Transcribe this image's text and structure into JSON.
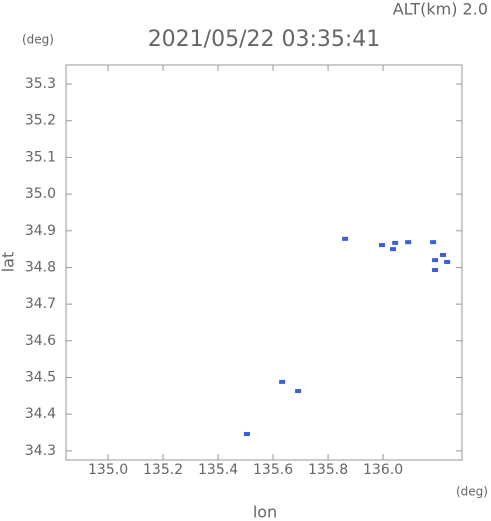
{
  "chart_data": {
    "type": "scatter",
    "title": "2021/05/22 03:35:41",
    "subtitle": "ALT(km) 2.0",
    "y_unit": "(deg)",
    "x_unit": "(deg)",
    "x_label": "lon",
    "y_label": "lat",
    "color": "#3a5fd8",
    "x": [
      135.862,
      135.633,
      135.691,
      135.505,
      135.996,
      136.044,
      136.036,
      136.091,
      136.182,
      136.218,
      136.233,
      136.189,
      136.189
    ],
    "y": [
      34.878,
      34.488,
      34.463,
      34.346,
      34.861,
      34.867,
      34.85,
      34.869,
      34.869,
      34.834,
      34.815,
      34.82,
      34.793
    ],
    "xlim": [
      134.847,
      136.287
    ],
    "ylim": [
      34.275,
      35.352
    ],
    "xticks": [
      {
        "value": 135.0,
        "label": "135.0"
      },
      135.2,
      135.4,
      135.6,
      135.8,
      {
        "value": 136.0,
        "label": "136.0"
      }
    ],
    "yticks": [
      35.3,
      35.2,
      35.1,
      {
        "value": 35.0,
        "label": "35.0"
      },
      34.9,
      34.8,
      34.7,
      34.6,
      34.5,
      34.4,
      34.3
    ],
    "grid": false
  }
}
